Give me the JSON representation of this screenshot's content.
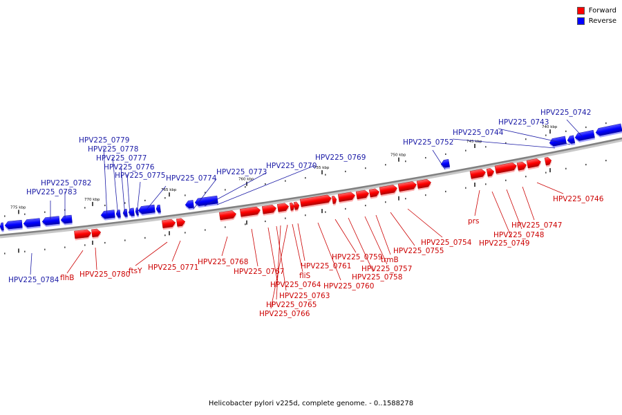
{
  "legend": [
    {
      "label": "Forward",
      "color": "#ff0000"
    },
    {
      "label": "Reverse",
      "color": "#0000ff"
    }
  ],
  "caption": "Helicobacter pylori v225d, complete genome. - 0..1588278",
  "scale_ticks": [
    "775 kbp",
    "770 kbp",
    "765 kbp",
    "760 kbp",
    "755 kbp",
    "750 kbp",
    "745 kbp",
    "740 kbp"
  ],
  "genes_forward": [
    "flhB",
    "HPV225_0780",
    "ftsY",
    "HPV225_0771",
    "HPV225_0768",
    "HPV225_0767",
    "HPV225_0764",
    "HPV225_0763",
    "HPV225_0765",
    "HPV225_0766",
    "fliS",
    "HPV225_0761",
    "HPV225_0760",
    "HPV225_0759",
    "HPV225_0758",
    "HPV225_0757",
    "trmB",
    "HPV225_0755",
    "HPV225_0754",
    "prs",
    "HPV225_0749",
    "HPV225_0748",
    "HPV225_0747",
    "HPV225_0746"
  ],
  "genes_reverse": [
    "HPV225_0784",
    "HPV225_0783",
    "HPV225_0782",
    "HPV225_0779",
    "HPV225_0778",
    "HPV225_0777",
    "HPV225_0776",
    "HPV225_0775",
    "HPV225_0774",
    "HPV225_0773",
    "HPV225_0770",
    "HPV225_0769",
    "HPV225_0752",
    "HPV225_0744",
    "HPV225_0743",
    "HPV225_0742"
  ],
  "colors": {
    "forward": "#ff0000",
    "reverse": "#0000ff",
    "forward_label": "#cc0000",
    "reverse_label": "#1a1aa6",
    "backbone": "#808080"
  }
}
